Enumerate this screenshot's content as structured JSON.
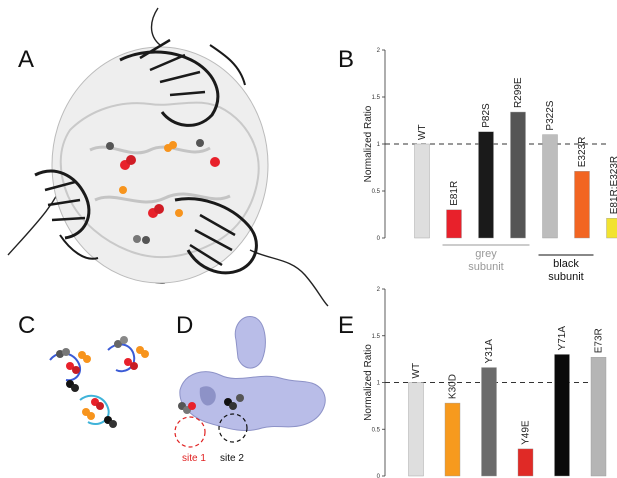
{
  "panels": {
    "A": "A",
    "B": "B",
    "C": "C",
    "D": "D",
    "E": "E"
  },
  "panel_d": {
    "site1_label": "site 1",
    "site2_label": "site 2",
    "site1_color": "#e02020",
    "site2_color": "#111111"
  },
  "chart_data": [
    {
      "type": "bar",
      "panel": "B",
      "ylabel": "Normalized Ratio",
      "ylim": [
        0,
        2
      ],
      "yticks": [
        "0",
        "0.5",
        "1",
        "1.5",
        "2"
      ],
      "reference_line": 1,
      "categories": [
        "WT",
        "E81R",
        "P82S",
        "R299E",
        "P322S",
        "E323R",
        "E81R:E323R"
      ],
      "values": [
        1.0,
        0.3,
        1.13,
        1.34,
        1.1,
        0.71,
        0.21
      ],
      "colors": [
        "#dedede",
        "#e8212b",
        "#1a1a1a",
        "#555555",
        "#bdbdbd",
        "#f26522",
        "#f2e330"
      ],
      "groups": [
        {
          "label": "grey subunit",
          "start": "E81R",
          "end": "R299E",
          "color": "#999999"
        },
        {
          "label": "black subunit",
          "start": "P322S",
          "end": "E323R",
          "color": "#111111"
        }
      ]
    },
    {
      "type": "bar",
      "panel": "E",
      "ylabel": "Normalized Ratio",
      "ylim": [
        0,
        2
      ],
      "yticks": [
        "0",
        "0.5",
        "1",
        "1.5",
        "2"
      ],
      "reference_line": 1,
      "categories": [
        "WT",
        "K30D",
        "Y31A",
        "Y49E",
        "Y71A",
        "E73R"
      ],
      "values": [
        1.0,
        0.78,
        1.16,
        0.29,
        1.3,
        1.27
      ],
      "colors": [
        "#dedede",
        "#f79a1e",
        "#6b6b6b",
        "#e02a26",
        "#0a0a0a",
        "#b5b5b5"
      ]
    }
  ]
}
